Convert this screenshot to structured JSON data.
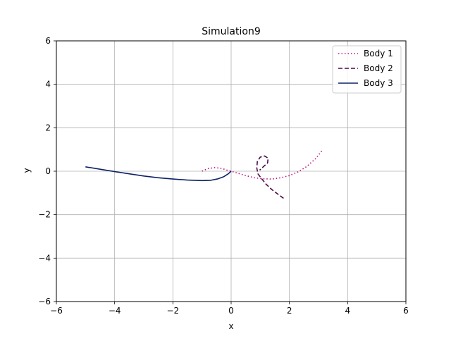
{
  "chart_data": {
    "type": "line",
    "title": "Simulation9",
    "xlabel": "x",
    "ylabel": "y",
    "xlim": [
      -6,
      6
    ],
    "ylim": [
      -6,
      6
    ],
    "xticks": [
      -6,
      -4,
      -2,
      0,
      2,
      4,
      6
    ],
    "yticks": [
      -6,
      -4,
      -2,
      0,
      2,
      4,
      6
    ],
    "xtick_labels": [
      "−6",
      "−4",
      "−2",
      "0",
      "2",
      "4",
      "6"
    ],
    "ytick_labels": [
      "−6",
      "−4",
      "−2",
      "0",
      "2",
      "4",
      "6"
    ],
    "grid": true,
    "legend_position": "top-right",
    "series": [
      {
        "name": "Body 1",
        "color": "#c0127f",
        "style": "dotted",
        "points": [
          [
            -1.0,
            0.0
          ],
          [
            -0.8,
            0.12
          ],
          [
            -0.55,
            0.17
          ],
          [
            -0.3,
            0.12
          ],
          [
            -0.1,
            0.03
          ],
          [
            0.0,
            0.0
          ],
          [
            0.2,
            -0.08
          ],
          [
            0.5,
            -0.2
          ],
          [
            0.8,
            -0.3
          ],
          [
            1.1,
            -0.35
          ],
          [
            1.4,
            -0.36
          ],
          [
            1.7,
            -0.3
          ],
          [
            2.0,
            -0.2
          ],
          [
            2.3,
            -0.03
          ],
          [
            2.6,
            0.22
          ],
          [
            2.9,
            0.58
          ],
          [
            3.15,
            1.0
          ]
        ]
      },
      {
        "name": "Body 2",
        "color": "#4a0a4a",
        "style": "dashed",
        "points": [
          [
            1.8,
            -1.25
          ],
          [
            1.6,
            -1.05
          ],
          [
            1.4,
            -0.85
          ],
          [
            1.2,
            -0.6
          ],
          [
            1.05,
            -0.35
          ],
          [
            0.92,
            -0.12
          ],
          [
            0.88,
            0.15
          ],
          [
            0.9,
            0.45
          ],
          [
            1.0,
            0.65
          ],
          [
            1.15,
            0.7
          ],
          [
            1.27,
            0.6
          ],
          [
            1.25,
            0.38
          ],
          [
            1.1,
            0.2
          ],
          [
            0.98,
            0.05
          ]
        ]
      },
      {
        "name": "Body 3",
        "color": "#0d2266",
        "style": "solid",
        "points": [
          [
            -5.0,
            0.2
          ],
          [
            -4.5,
            0.09
          ],
          [
            -4.0,
            -0.02
          ],
          [
            -3.5,
            -0.12
          ],
          [
            -3.0,
            -0.22
          ],
          [
            -2.5,
            -0.3
          ],
          [
            -2.0,
            -0.36
          ],
          [
            -1.5,
            -0.41
          ],
          [
            -1.0,
            -0.43
          ],
          [
            -0.7,
            -0.42
          ],
          [
            -0.45,
            -0.35
          ],
          [
            -0.25,
            -0.25
          ],
          [
            -0.1,
            -0.12
          ],
          [
            0.0,
            0.0
          ]
        ]
      }
    ]
  }
}
